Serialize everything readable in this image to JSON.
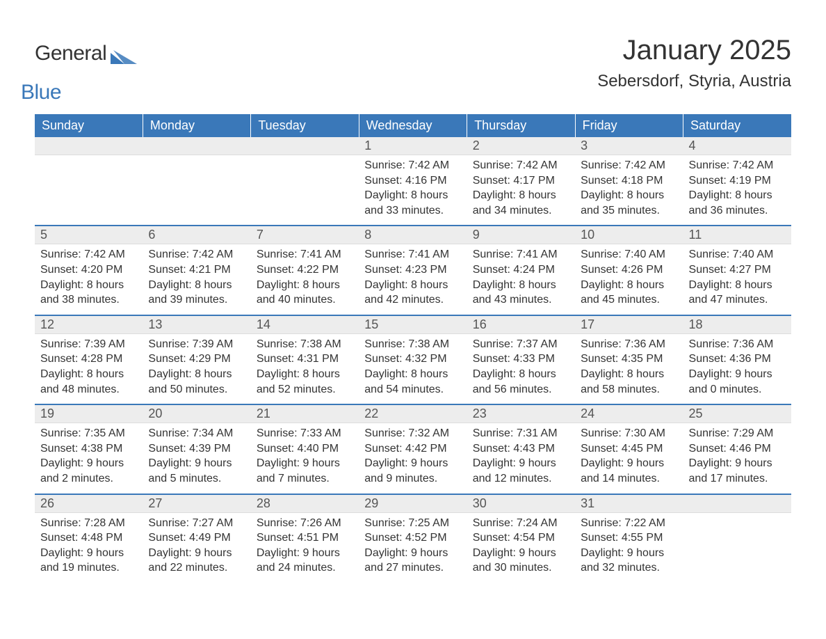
{
  "brand": {
    "w1": "General",
    "w2": "Blue",
    "text_color": "#333333",
    "accent_color": "#3a78b9"
  },
  "title": "January 2025",
  "location": "Sebersdorf, Styria, Austria",
  "dayHeaders": [
    "Sunday",
    "Monday",
    "Tuesday",
    "Wednesday",
    "Thursday",
    "Friday",
    "Saturday"
  ],
  "colors": {
    "header_bg": "#3a78b9",
    "header_text": "#ffffff",
    "daynum_bg": "#ededed",
    "week_divider": "#3a78b9",
    "body_text": "#333333",
    "page_bg": "#ffffff"
  },
  "weeks": [
    [
      {
        "n": "",
        "sr": "",
        "ss": "",
        "dl1": "",
        "dl2": ""
      },
      {
        "n": "",
        "sr": "",
        "ss": "",
        "dl1": "",
        "dl2": ""
      },
      {
        "n": "",
        "sr": "",
        "ss": "",
        "dl1": "",
        "dl2": ""
      },
      {
        "n": "1",
        "sr": "Sunrise: 7:42 AM",
        "ss": "Sunset: 4:16 PM",
        "dl1": "Daylight: 8 hours",
        "dl2": "and 33 minutes."
      },
      {
        "n": "2",
        "sr": "Sunrise: 7:42 AM",
        "ss": "Sunset: 4:17 PM",
        "dl1": "Daylight: 8 hours",
        "dl2": "and 34 minutes."
      },
      {
        "n": "3",
        "sr": "Sunrise: 7:42 AM",
        "ss": "Sunset: 4:18 PM",
        "dl1": "Daylight: 8 hours",
        "dl2": "and 35 minutes."
      },
      {
        "n": "4",
        "sr": "Sunrise: 7:42 AM",
        "ss": "Sunset: 4:19 PM",
        "dl1": "Daylight: 8 hours",
        "dl2": "and 36 minutes."
      }
    ],
    [
      {
        "n": "5",
        "sr": "Sunrise: 7:42 AM",
        "ss": "Sunset: 4:20 PM",
        "dl1": "Daylight: 8 hours",
        "dl2": "and 38 minutes."
      },
      {
        "n": "6",
        "sr": "Sunrise: 7:42 AM",
        "ss": "Sunset: 4:21 PM",
        "dl1": "Daylight: 8 hours",
        "dl2": "and 39 minutes."
      },
      {
        "n": "7",
        "sr": "Sunrise: 7:41 AM",
        "ss": "Sunset: 4:22 PM",
        "dl1": "Daylight: 8 hours",
        "dl2": "and 40 minutes."
      },
      {
        "n": "8",
        "sr": "Sunrise: 7:41 AM",
        "ss": "Sunset: 4:23 PM",
        "dl1": "Daylight: 8 hours",
        "dl2": "and 42 minutes."
      },
      {
        "n": "9",
        "sr": "Sunrise: 7:41 AM",
        "ss": "Sunset: 4:24 PM",
        "dl1": "Daylight: 8 hours",
        "dl2": "and 43 minutes."
      },
      {
        "n": "10",
        "sr": "Sunrise: 7:40 AM",
        "ss": "Sunset: 4:26 PM",
        "dl1": "Daylight: 8 hours",
        "dl2": "and 45 minutes."
      },
      {
        "n": "11",
        "sr": "Sunrise: 7:40 AM",
        "ss": "Sunset: 4:27 PM",
        "dl1": "Daylight: 8 hours",
        "dl2": "and 47 minutes."
      }
    ],
    [
      {
        "n": "12",
        "sr": "Sunrise: 7:39 AM",
        "ss": "Sunset: 4:28 PM",
        "dl1": "Daylight: 8 hours",
        "dl2": "and 48 minutes."
      },
      {
        "n": "13",
        "sr": "Sunrise: 7:39 AM",
        "ss": "Sunset: 4:29 PM",
        "dl1": "Daylight: 8 hours",
        "dl2": "and 50 minutes."
      },
      {
        "n": "14",
        "sr": "Sunrise: 7:38 AM",
        "ss": "Sunset: 4:31 PM",
        "dl1": "Daylight: 8 hours",
        "dl2": "and 52 minutes."
      },
      {
        "n": "15",
        "sr": "Sunrise: 7:38 AM",
        "ss": "Sunset: 4:32 PM",
        "dl1": "Daylight: 8 hours",
        "dl2": "and 54 minutes."
      },
      {
        "n": "16",
        "sr": "Sunrise: 7:37 AM",
        "ss": "Sunset: 4:33 PM",
        "dl1": "Daylight: 8 hours",
        "dl2": "and 56 minutes."
      },
      {
        "n": "17",
        "sr": "Sunrise: 7:36 AM",
        "ss": "Sunset: 4:35 PM",
        "dl1": "Daylight: 8 hours",
        "dl2": "and 58 minutes."
      },
      {
        "n": "18",
        "sr": "Sunrise: 7:36 AM",
        "ss": "Sunset: 4:36 PM",
        "dl1": "Daylight: 9 hours",
        "dl2": "and 0 minutes."
      }
    ],
    [
      {
        "n": "19",
        "sr": "Sunrise: 7:35 AM",
        "ss": "Sunset: 4:38 PM",
        "dl1": "Daylight: 9 hours",
        "dl2": "and 2 minutes."
      },
      {
        "n": "20",
        "sr": "Sunrise: 7:34 AM",
        "ss": "Sunset: 4:39 PM",
        "dl1": "Daylight: 9 hours",
        "dl2": "and 5 minutes."
      },
      {
        "n": "21",
        "sr": "Sunrise: 7:33 AM",
        "ss": "Sunset: 4:40 PM",
        "dl1": "Daylight: 9 hours",
        "dl2": "and 7 minutes."
      },
      {
        "n": "22",
        "sr": "Sunrise: 7:32 AM",
        "ss": "Sunset: 4:42 PM",
        "dl1": "Daylight: 9 hours",
        "dl2": "and 9 minutes."
      },
      {
        "n": "23",
        "sr": "Sunrise: 7:31 AM",
        "ss": "Sunset: 4:43 PM",
        "dl1": "Daylight: 9 hours",
        "dl2": "and 12 minutes."
      },
      {
        "n": "24",
        "sr": "Sunrise: 7:30 AM",
        "ss": "Sunset: 4:45 PM",
        "dl1": "Daylight: 9 hours",
        "dl2": "and 14 minutes."
      },
      {
        "n": "25",
        "sr": "Sunrise: 7:29 AM",
        "ss": "Sunset: 4:46 PM",
        "dl1": "Daylight: 9 hours",
        "dl2": "and 17 minutes."
      }
    ],
    [
      {
        "n": "26",
        "sr": "Sunrise: 7:28 AM",
        "ss": "Sunset: 4:48 PM",
        "dl1": "Daylight: 9 hours",
        "dl2": "and 19 minutes."
      },
      {
        "n": "27",
        "sr": "Sunrise: 7:27 AM",
        "ss": "Sunset: 4:49 PM",
        "dl1": "Daylight: 9 hours",
        "dl2": "and 22 minutes."
      },
      {
        "n": "28",
        "sr": "Sunrise: 7:26 AM",
        "ss": "Sunset: 4:51 PM",
        "dl1": "Daylight: 9 hours",
        "dl2": "and 24 minutes."
      },
      {
        "n": "29",
        "sr": "Sunrise: 7:25 AM",
        "ss": "Sunset: 4:52 PM",
        "dl1": "Daylight: 9 hours",
        "dl2": "and 27 minutes."
      },
      {
        "n": "30",
        "sr": "Sunrise: 7:24 AM",
        "ss": "Sunset: 4:54 PM",
        "dl1": "Daylight: 9 hours",
        "dl2": "and 30 minutes."
      },
      {
        "n": "31",
        "sr": "Sunrise: 7:22 AM",
        "ss": "Sunset: 4:55 PM",
        "dl1": "Daylight: 9 hours",
        "dl2": "and 32 minutes."
      },
      {
        "n": "",
        "sr": "",
        "ss": "",
        "dl1": "",
        "dl2": ""
      }
    ]
  ]
}
